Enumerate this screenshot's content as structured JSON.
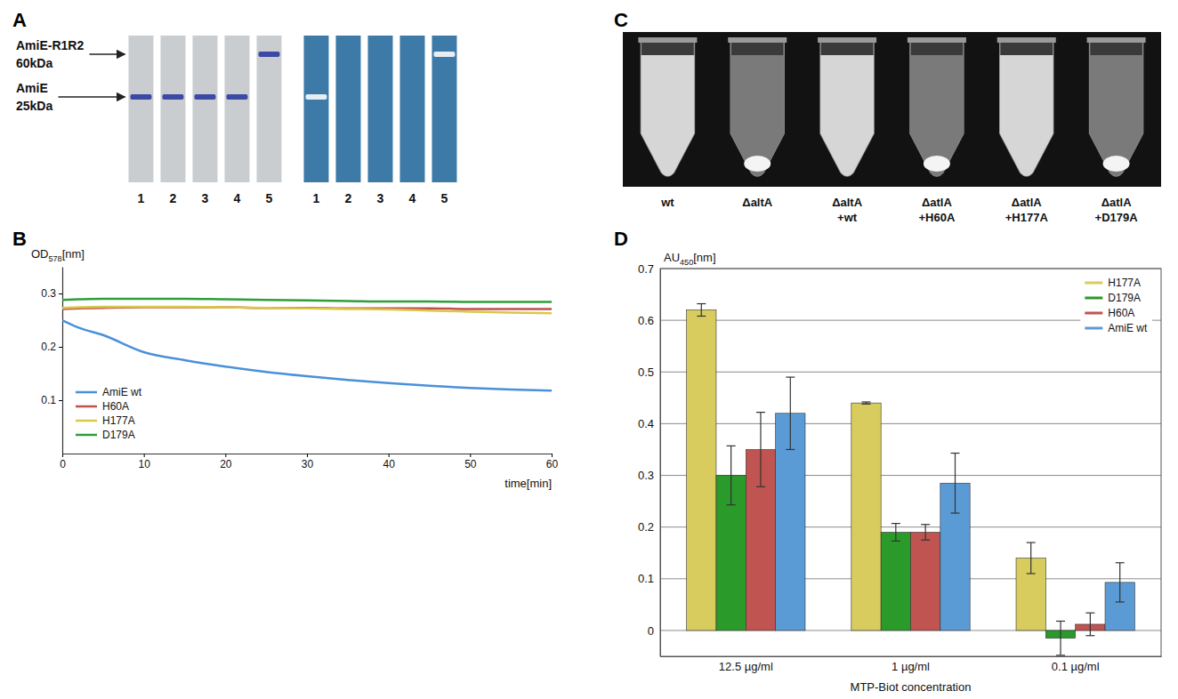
{
  "panel_letters": [
    "A",
    "B",
    "C",
    "D"
  ],
  "panel_a": {
    "markers": [
      {
        "name": "AmiE-R1R2",
        "size": "60kDa"
      },
      {
        "name": "AmiE",
        "size": "25kDa"
      }
    ],
    "gels": [
      {
        "lanes": [
          "1",
          "2",
          "3",
          "4",
          "5"
        ],
        "bands": [
          [
            "AmiE"
          ],
          [
            "AmiE"
          ],
          [
            "AmiE"
          ],
          [
            "AmiE"
          ],
          [
            "AmiE-R1R2"
          ]
        ]
      },
      {
        "lanes": [
          "1",
          "2",
          "3",
          "4",
          "5"
        ],
        "bands": [
          [
            "AmiE"
          ],
          [],
          [],
          [],
          [
            "AmiE-R1R2"
          ]
        ]
      }
    ]
  },
  "panel_c": {
    "tubes": [
      {
        "label": [
          "wt"
        ],
        "pellet": false
      },
      {
        "label": [
          "ΔaltA"
        ],
        "pellet": true
      },
      {
        "label": [
          "ΔaltA",
          "+wt"
        ],
        "pellet": false
      },
      {
        "label": [
          "ΔatlA",
          "+H60A"
        ],
        "pellet": true
      },
      {
        "label": [
          "ΔatlA",
          "+H177A"
        ],
        "pellet": false
      },
      {
        "label": [
          "ΔatlA",
          "+D179A"
        ],
        "pellet": true
      }
    ]
  },
  "chart_data": [
    {
      "type": "line",
      "x_label": "time[min]",
      "y_label": "OD578[nm]",
      "x": [
        0,
        2,
        5,
        10,
        15,
        20,
        25,
        30,
        35,
        40,
        45,
        50,
        55,
        60
      ],
      "xlim": [
        0,
        60
      ],
      "xticks": [
        0,
        10,
        20,
        30,
        40,
        50,
        60
      ],
      "ylim": [
        0,
        0.35
      ],
      "yticks": [
        0.1,
        0.2,
        0.3
      ],
      "legend": "lower left",
      "series": [
        {
          "name": "AmiE wt",
          "color": "#4a90d9",
          "values": [
            0.25,
            0.236,
            0.222,
            0.19,
            0.175,
            0.163,
            0.153,
            0.145,
            0.138,
            0.132,
            0.127,
            0.123,
            0.12,
            0.118
          ]
        },
        {
          "name": "H60A",
          "color": "#c0504d",
          "values": [
            0.271,
            0.272,
            0.273,
            0.274,
            0.274,
            0.274,
            0.273,
            0.273,
            0.272,
            0.272,
            0.272,
            0.271,
            0.271,
            0.271
          ]
        },
        {
          "name": "H177A",
          "color": "#d9c84a",
          "values": [
            0.273,
            0.274,
            0.275,
            0.275,
            0.275,
            0.274,
            0.273,
            0.272,
            0.271,
            0.27,
            0.268,
            0.266,
            0.264,
            0.263
          ]
        },
        {
          "name": "D179A",
          "color": "#2e9e3a",
          "values": [
            0.288,
            0.289,
            0.29,
            0.29,
            0.29,
            0.289,
            0.288,
            0.287,
            0.286,
            0.285,
            0.285,
            0.284,
            0.284,
            0.284
          ]
        }
      ]
    },
    {
      "type": "bar",
      "x_label": "MTP-Biot concentration",
      "y_label": "AU450[nm]",
      "categories": [
        "12.5 µg/ml",
        "1 µg/ml",
        "0.1 µg/ml"
      ],
      "ylim": [
        -0.05,
        0.7
      ],
      "yticks": [
        0,
        0.1,
        0.2,
        0.3,
        0.4,
        0.5,
        0.6,
        0.7
      ],
      "grid": true,
      "legend": "upper right",
      "series": [
        {
          "name": "H177A",
          "color": "#d8cc5e",
          "values": [
            0.62,
            0.44,
            0.14
          ],
          "errors": [
            0.012,
            0.002,
            0.03
          ]
        },
        {
          "name": "D179A",
          "color": "#2a9a2a",
          "values": [
            0.3,
            0.19,
            -0.015
          ],
          "errors": [
            0.057,
            0.017,
            0.033
          ]
        },
        {
          "name": "H60A",
          "color": "#bf5450",
          "values": [
            0.35,
            0.19,
            0.012
          ],
          "errors": [
            0.072,
            0.015,
            0.022
          ]
        },
        {
          "name": "AmiE wt",
          "color": "#5b9bd5",
          "values": [
            0.42,
            0.285,
            0.093
          ],
          "errors": [
            0.07,
            0.058,
            0.038
          ]
        }
      ]
    }
  ]
}
